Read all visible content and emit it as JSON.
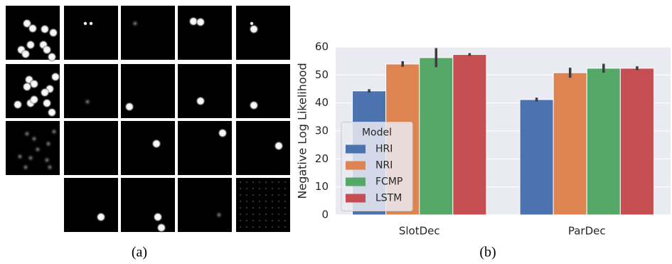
{
  "chart_data": {
    "type": "bar",
    "y_label": "Negative Log Likelihood",
    "categories": [
      "SlotDec",
      "ParDec"
    ],
    "series": [
      {
        "name": "HRI",
        "color": "#4c72b0",
        "values": [
          44.3,
          41.2
        ],
        "errors": [
          0.6,
          0.7
        ]
      },
      {
        "name": "NRI",
        "color": "#dd8452",
        "values": [
          53.9,
          50.8
        ],
        "errors": [
          1.0,
          1.8
        ]
      },
      {
        "name": "FCMP",
        "color": "#55a868",
        "values": [
          56.2,
          52.4
        ],
        "errors": [
          3.4,
          1.6
        ]
      },
      {
        "name": "LSTM",
        "color": "#c44e52",
        "values": [
          57.3,
          52.4
        ],
        "errors": [
          0.5,
          0.7
        ]
      }
    ],
    "ylim": [
      0,
      60
    ],
    "yticks": [
      0,
      10,
      20,
      30,
      40,
      50,
      60
    ],
    "grid": true,
    "legend_title": "Model",
    "legend_position": "center left"
  },
  "captions": [
    "(a)",
    "(b)"
  ]
}
